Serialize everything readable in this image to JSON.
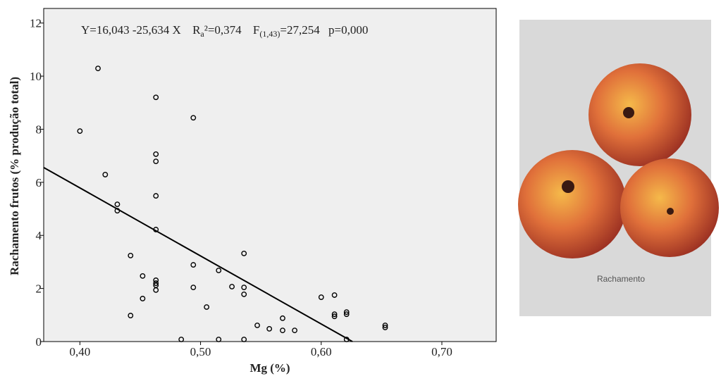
{
  "chart_data": {
    "type": "scatter",
    "annotation": [
      "Y=16,043 -25,634 X",
      "R",
      "a",
      "²=0,374",
      "F",
      "(1,43)",
      "=27,254",
      "p=0,000"
    ],
    "fit": {
      "intercept": 16.043,
      "slope": -25.634
    },
    "xlabel": "Mg (%)",
    "ylabel": "Rachamento frutos (% produção total)",
    "xlim": [
      0.37,
      0.745
    ],
    "ylim": [
      0,
      12.55
    ],
    "xticks": [
      {
        "value": 0.4,
        "label": "0,40"
      },
      {
        "value": 0.5,
        "label": "0,50"
      },
      {
        "value": 0.6,
        "label": "0,60"
      },
      {
        "value": 0.7,
        "label": "0,70"
      }
    ],
    "yticks": [
      0,
      2,
      4,
      6,
      8,
      10,
      12
    ],
    "color": "#000000",
    "x": [
      0.4,
      0.421,
      0.415,
      0.431,
      0.431,
      0.442,
      0.442,
      0.452,
      0.452,
      0.463,
      0.463,
      0.463,
      0.463,
      0.463,
      0.463,
      0.463,
      0.463,
      0.463,
      0.484,
      0.494,
      0.494,
      0.494,
      0.505,
      0.515,
      0.515,
      0.526,
      0.536,
      0.536,
      0.536,
      0.536,
      0.547,
      0.557,
      0.568,
      0.568,
      0.578,
      0.6,
      0.611,
      0.611,
      0.611,
      0.621,
      0.621,
      0.621,
      0.653,
      0.653
    ],
    "values": [
      7.93,
      6.29,
      10.29,
      5.17,
      4.93,
      3.24,
      0.98,
      2.47,
      1.62,
      9.2,
      7.06,
      6.79,
      5.49,
      4.22,
      2.31,
      2.2,
      2.12,
      1.94,
      0,
      8.43,
      2.89,
      2.04,
      1.3,
      2.68,
      0,
      2.07,
      3.32,
      2.04,
      1.78,
      0,
      0.61,
      0.48,
      0.88,
      0.42,
      0.42,
      1.67,
      1.75,
      1.03,
      0.95,
      1.11,
      1.03,
      0,
      0.61,
      0.53
    ]
  },
  "photo": {
    "caption": "Rachamento"
  }
}
